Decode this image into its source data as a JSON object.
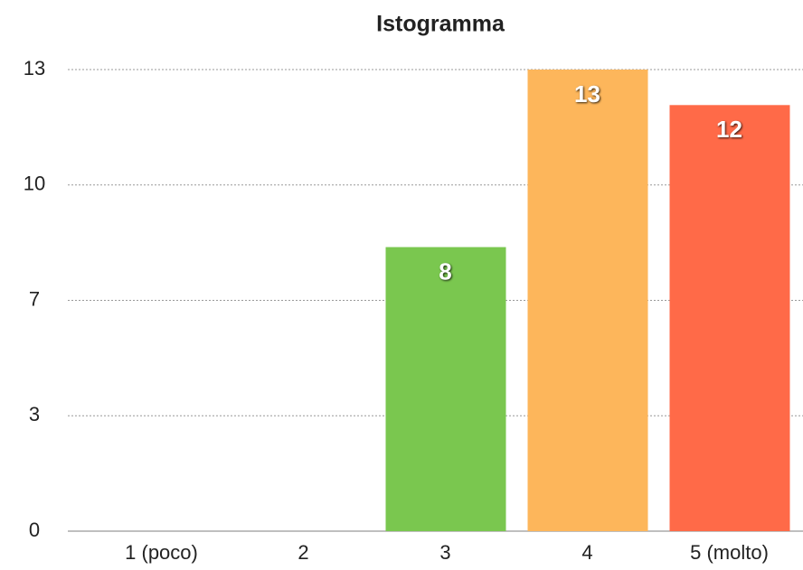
{
  "chart_data": {
    "type": "bar",
    "title": "Istogramma",
    "categories": [
      "1 (poco)",
      "2",
      "3",
      "4",
      "5 (molto)"
    ],
    "values": [
      0,
      0,
      8,
      13,
      12
    ],
    "colors": [
      null,
      null,
      "#7ac74f",
      "#fdb65b",
      "#ff6a48"
    ],
    "ylim": [
      0,
      13
    ],
    "yticks": [
      0,
      {
        "value": 3.25,
        "label": "3"
      },
      {
        "value": 6.5,
        "label": "7"
      },
      {
        "value": 9.75,
        "label": "10"
      },
      13
    ],
    "grid": true
  }
}
